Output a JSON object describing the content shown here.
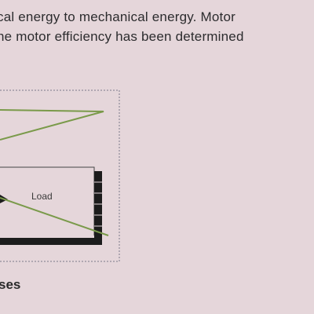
{
  "text": {
    "line1": "cal energy to mechanical energy.  Motor",
    "line2": "he motor efficiency has been determined"
  },
  "figure": {
    "load_label": "Load",
    "caption": "ses"
  },
  "colors": {
    "background": "#e5d6da",
    "green_line": "#7a9a4a",
    "frame": "#1c1c1c",
    "dashed_border": "#7a7a8a"
  }
}
